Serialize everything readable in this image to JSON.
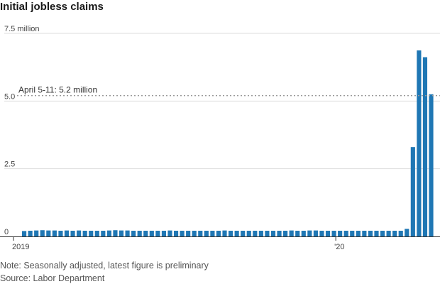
{
  "title": "Initial jobless claims",
  "note": "Note: Seasonally adjusted, latest figure is preliminary",
  "source": "Source: Labor Department",
  "chart_data": {
    "type": "bar",
    "title": "Initial jobless claims",
    "unit_label": "7.5 million",
    "ylim": [
      0,
      7.5
    ],
    "y_ticks": [
      {
        "value": 7.5,
        "label": "7.5 million"
      },
      {
        "value": 5.0,
        "label": "5.0"
      },
      {
        "value": 2.5,
        "label": "2.5"
      },
      {
        "value": 0,
        "label": "0"
      }
    ],
    "x_ticks": [
      {
        "index": 0,
        "label": "2019"
      },
      {
        "index": 52,
        "label": "'20"
      }
    ],
    "grid": true,
    "annotation": {
      "label": "April 5-11: 5.2 million",
      "value": 5.2
    },
    "bar_color": "#1f77b4",
    "values": [
      0.2,
      0.21,
      0.22,
      0.23,
      0.22,
      0.22,
      0.21,
      0.22,
      0.21,
      0.22,
      0.21,
      0.21,
      0.21,
      0.21,
      0.22,
      0.23,
      0.22,
      0.22,
      0.21,
      0.21,
      0.21,
      0.21,
      0.21,
      0.21,
      0.22,
      0.21,
      0.21,
      0.21,
      0.21,
      0.21,
      0.21,
      0.21,
      0.21,
      0.22,
      0.21,
      0.21,
      0.21,
      0.21,
      0.21,
      0.21,
      0.21,
      0.21,
      0.21,
      0.21,
      0.22,
      0.21,
      0.21,
      0.22,
      0.22,
      0.21,
      0.21,
      0.21,
      0.21,
      0.21,
      0.21,
      0.21,
      0.21,
      0.21,
      0.21,
      0.21,
      0.21,
      0.21,
      0.21,
      0.28,
      3.3,
      6.87,
      6.62,
      5.25
    ]
  }
}
